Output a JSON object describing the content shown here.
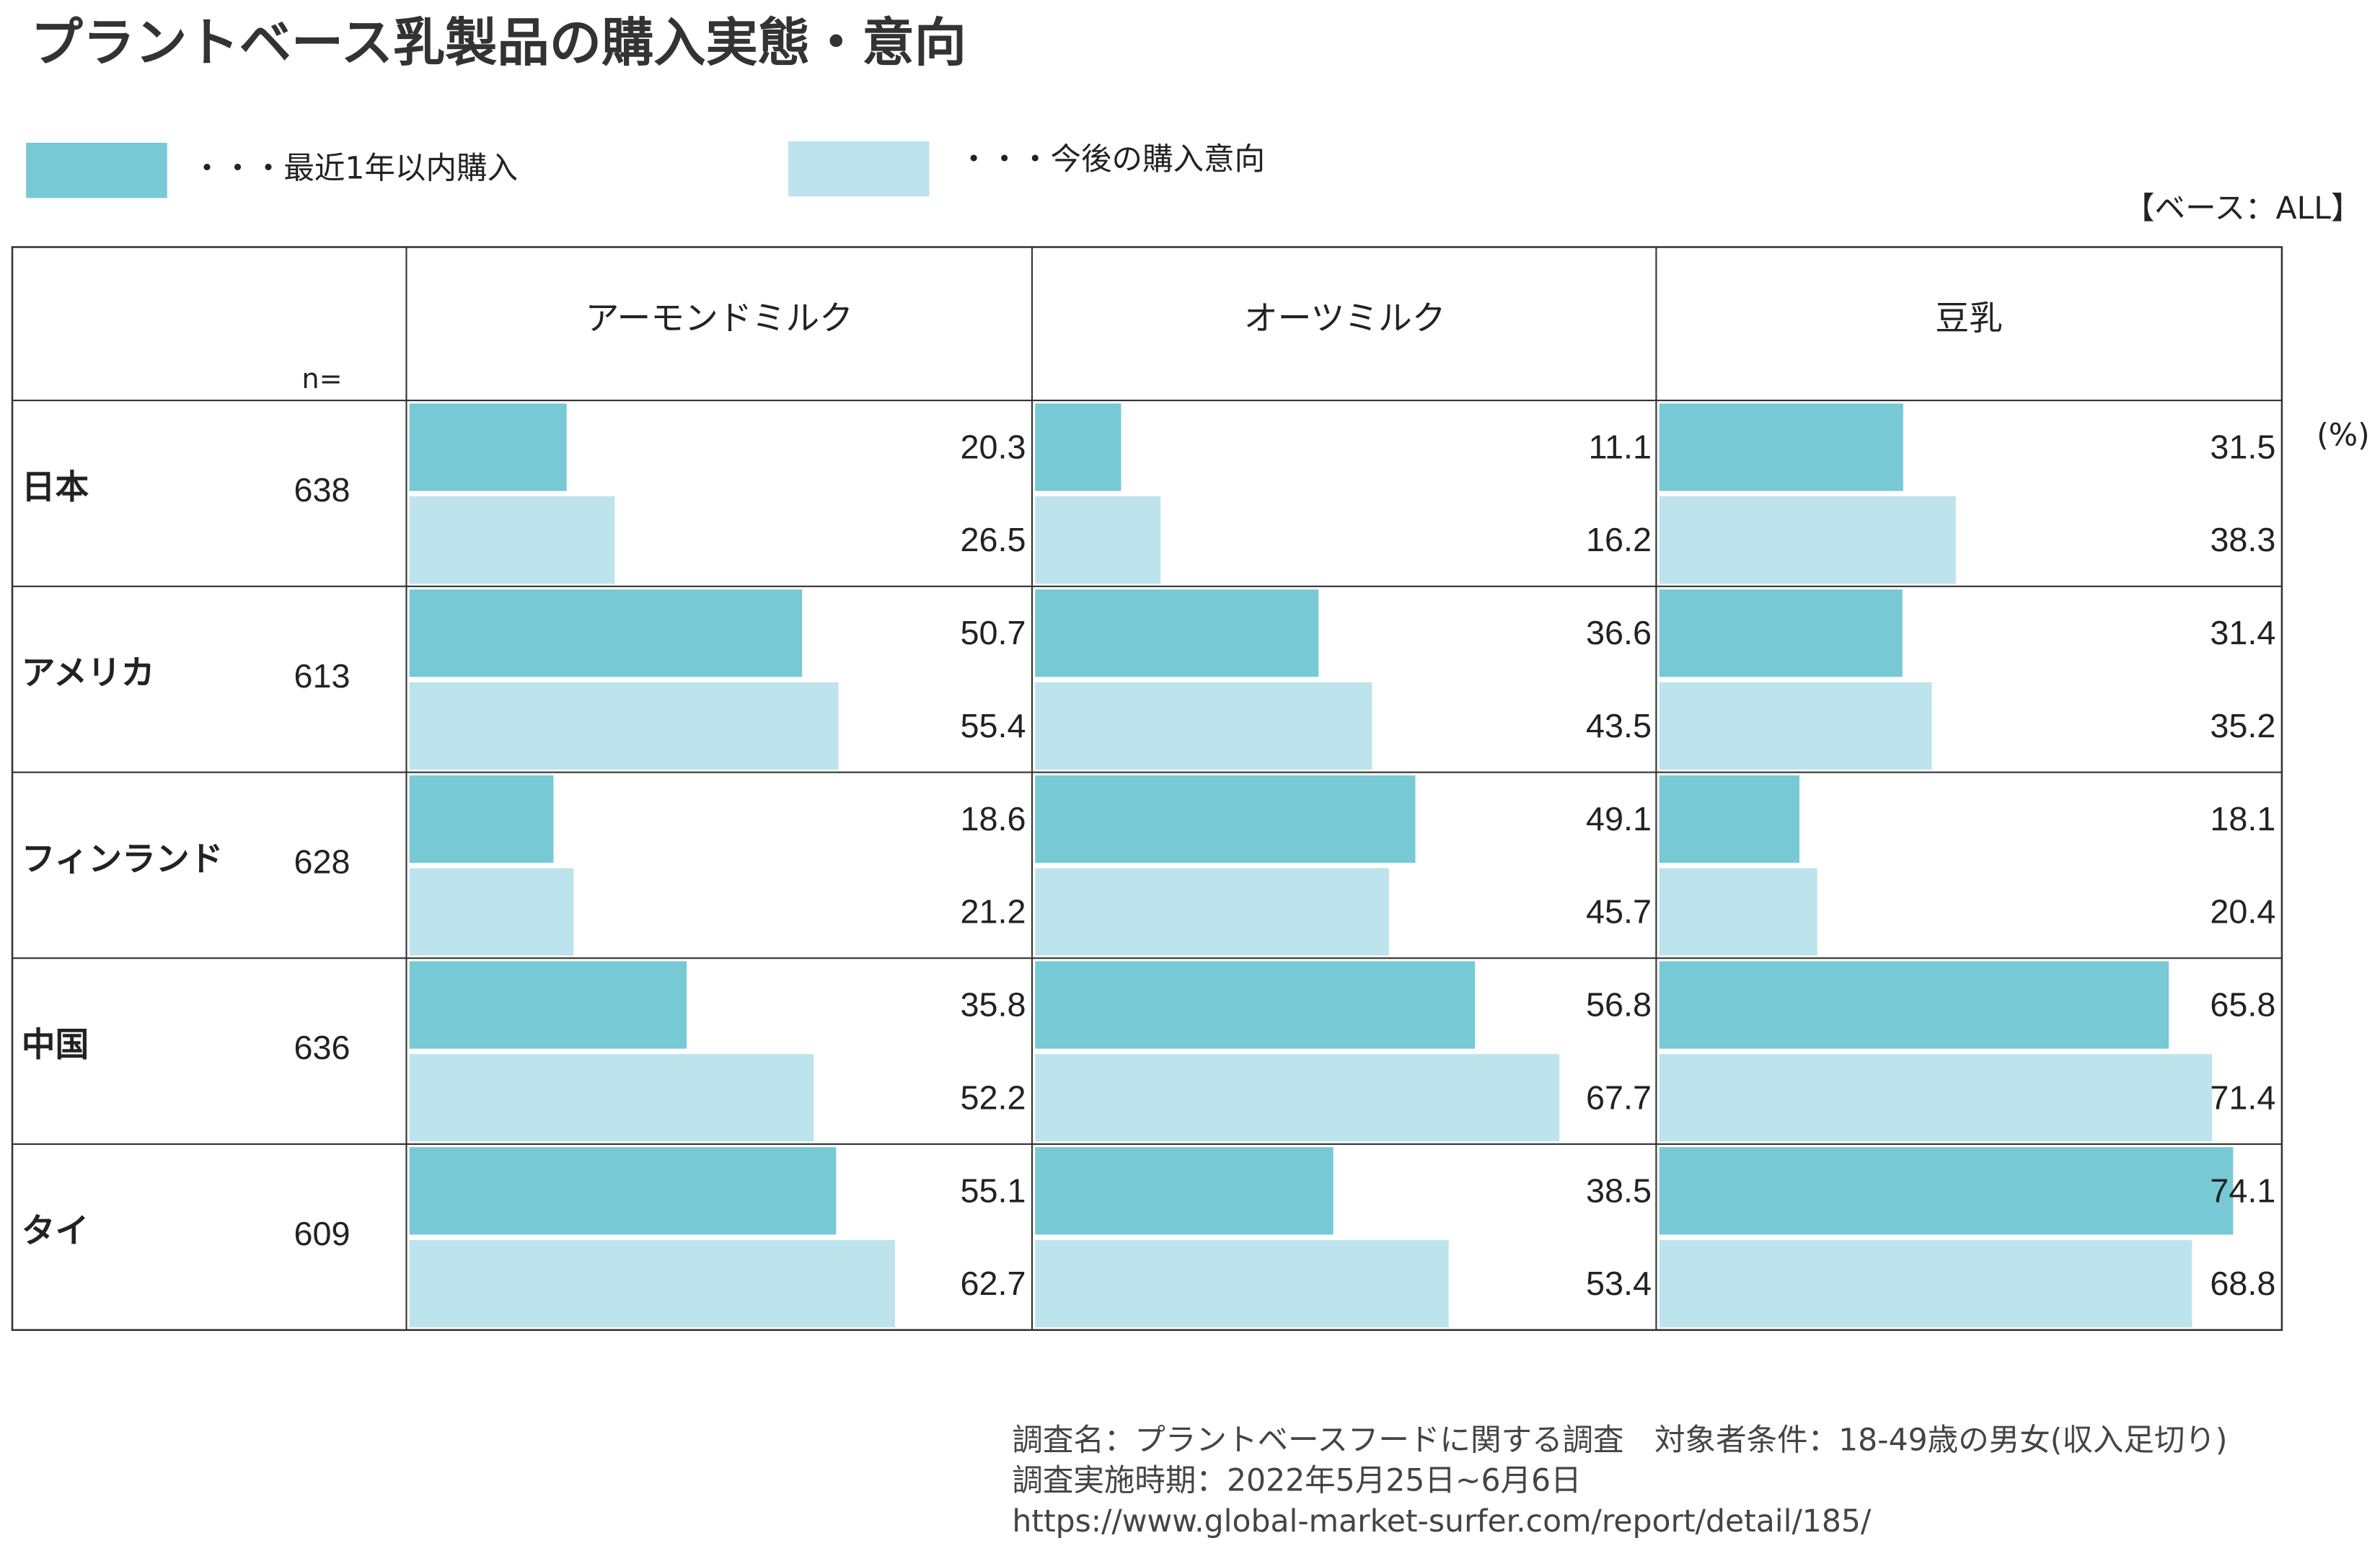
{
  "chart_data": {
    "type": "bar",
    "title": "プラントベース乳製品の購入実態・意向",
    "base_note": "【ベース：ALL】",
    "unit_label": "(%)",
    "n_label": "n=",
    "categories": [
      "日本",
      "アメリカ",
      "フィンランド",
      "中国",
      "タイ"
    ],
    "n": [
      638,
      613,
      628,
      636,
      609
    ],
    "series_legend": [
      {
        "name": "・・・最近1年以内購入",
        "color": "#77c9d6"
      },
      {
        "name": "・・・今後の購入意向",
        "color": "#bde4ec"
      }
    ],
    "xlim": [
      0,
      80
    ],
    "panels": [
      {
        "title": "アーモンドミルク",
        "series": [
          {
            "values": [
              20.3,
              50.7,
              18.6,
              35.8,
              55.1
            ]
          },
          {
            "values": [
              26.5,
              55.4,
              21.2,
              52.2,
              62.7
            ]
          }
        ]
      },
      {
        "title": "オーツミルク",
        "series": [
          {
            "values": [
              11.1,
              36.6,
              49.1,
              56.8,
              38.5
            ]
          },
          {
            "values": [
              16.2,
              43.5,
              45.7,
              67.7,
              53.4
            ]
          }
        ]
      },
      {
        "title": "豆乳",
        "series": [
          {
            "values": [
              31.5,
              31.4,
              18.1,
              65.8,
              74.1
            ]
          },
          {
            "values": [
              38.3,
              35.2,
              20.4,
              71.4,
              68.8
            ]
          }
        ]
      }
    ],
    "notes": [
      "調査名：プラントベースフードに関する調査　対象者条件：18-49歳の男女(収入足切り)",
      "調査実施時期：2022年5月25日~6月6日",
      "https://www.global-market-surfer.com/report/detail/185/"
    ]
  }
}
